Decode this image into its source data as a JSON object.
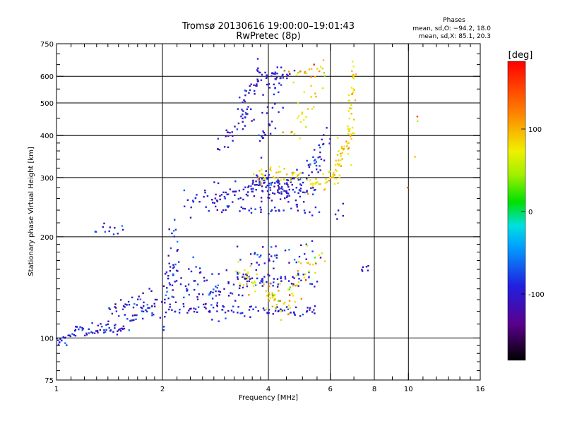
{
  "chart_data": {
    "type": "scatter",
    "title": "Tromsø 20130616 19:00:00–19:01:43",
    "subtitle": "RwPretec (8p)",
    "xlabel": "Frequency [MHz]",
    "ylabel": "Stationary phase Virtual Height [km]",
    "x_scale": "log",
    "y_scale": "log",
    "xlim": [
      1,
      16
    ],
    "ylim": [
      75,
      750
    ],
    "x_ticks": [
      1,
      2,
      4,
      6,
      8,
      10,
      16
    ],
    "x_tick_labels": [
      "1",
      "2",
      "4",
      "6",
      "8",
      "10",
      "16"
    ],
    "y_ticks": [
      75,
      100,
      200,
      300,
      400,
      500,
      600,
      750
    ],
    "y_tick_labels": [
      "75",
      "100",
      "200",
      "300",
      "400",
      "500",
      "600",
      "750"
    ],
    "x_minor_ticks": [
      1.1,
      1.2,
      1.3,
      1.4,
      1.5,
      1.6,
      1.7,
      1.8,
      1.9,
      2.2,
      2.4,
      2.6,
      2.8,
      3,
      3.2,
      3.4,
      3.6,
      3.8,
      4.5,
      5,
      5.5,
      7,
      9,
      11,
      12,
      13,
      14,
      15
    ],
    "y_minor_ticks": [
      80,
      85,
      90,
      95,
      110,
      120,
      130,
      140,
      150,
      160,
      170,
      180,
      190,
      220,
      240,
      260,
      280,
      320,
      340,
      360,
      380,
      450,
      550,
      650,
      700
    ],
    "grid_x": [
      2,
      4,
      6,
      8,
      10
    ],
    "grid_y": [
      100,
      200,
      300,
      400,
      500,
      600
    ],
    "grid": true,
    "legend": {
      "title": "Phases",
      "lines": [
        "mean, sd,O: −94.2, 18.0",
        "mean, sd,X: 85.1, 20.3"
      ],
      "placement": "top-right"
    },
    "colorbar": {
      "label": "[deg]",
      "range": [
        -180,
        180
      ],
      "ticks": [
        100,
        0,
        -100
      ],
      "tick_labels": [
        "100",
        "0",
        "-100"
      ],
      "colormap": "rainbow"
    },
    "series": [
      {
        "name": "O",
        "color_mean_deg": -94.2,
        "color_sd_deg": 18.0,
        "traces": [
          {
            "x0": 1.0,
            "x1": 1.12,
            "y0": 97,
            "y1": 102,
            "n": 20,
            "jx": 0.01,
            "jy": 0.02,
            "p": -95,
            "ps": 15
          },
          {
            "x0": 1.12,
            "x1": 1.55,
            "y0": 106,
            "y1": 106,
            "n": 45,
            "jx": 0.005,
            "jy": 0.02,
            "p": -95,
            "ps": 15
          },
          {
            "x0": 1.4,
            "x1": 1.9,
            "y0": 118,
            "y1": 128,
            "n": 40,
            "jx": 0.01,
            "jy": 0.05,
            "p": -95,
            "ps": 20
          },
          {
            "x0": 1.55,
            "x1": 2.0,
            "y0": 108,
            "y1": 130,
            "n": 25,
            "jx": 0.01,
            "jy": 0.03,
            "p": -95,
            "ps": 20
          },
          {
            "x0": 1.3,
            "x1": 1.55,
            "y0": 207,
            "y1": 210,
            "n": 12,
            "jx": 0.01,
            "jy": 0.02,
            "p": -90,
            "ps": 20
          },
          {
            "x0": 2.0,
            "x1": 2.2,
            "y0": 120,
            "y1": 195,
            "n": 40,
            "jx": 0.02,
            "jy": 0.1,
            "p": -95,
            "ps": 20
          },
          {
            "x0": 2.1,
            "x1": 3.0,
            "y0": 150,
            "y1": 130,
            "n": 60,
            "jx": 0.03,
            "jy": 0.08,
            "p": -95,
            "ps": 20
          },
          {
            "x0": 2.1,
            "x1": 5.6,
            "y0": 122,
            "y1": 120,
            "n": 80,
            "jx": 0.02,
            "jy": 0.02,
            "p": -95,
            "ps": 15
          },
          {
            "x0": 2.8,
            "x1": 4.2,
            "y0": 130,
            "y1": 170,
            "n": 40,
            "jx": 0.03,
            "jy": 0.06,
            "p": -90,
            "ps": 25
          },
          {
            "x0": 3.2,
            "x1": 5.5,
            "y0": 148,
            "y1": 148,
            "n": 50,
            "jx": 0.02,
            "jy": 0.03,
            "p": -95,
            "ps": 15
          },
          {
            "x0": 3.4,
            "x1": 5.6,
            "y0": 175,
            "y1": 175,
            "n": 30,
            "jx": 0.03,
            "jy": 0.04,
            "p": -90,
            "ps": 25
          },
          {
            "x0": 2.3,
            "x1": 3.0,
            "y0": 250,
            "y1": 270,
            "n": 25,
            "jx": 0.02,
            "jy": 0.06,
            "p": -95,
            "ps": 15
          },
          {
            "x0": 2.8,
            "x1": 4.0,
            "y0": 250,
            "y1": 298,
            "n": 50,
            "jx": 0.02,
            "jy": 0.03,
            "p": -100,
            "ps": 15
          },
          {
            "x0": 3.7,
            "x1": 5.0,
            "y0": 298,
            "y1": 262,
            "n": 45,
            "jx": 0.02,
            "jy": 0.03,
            "p": -100,
            "ps": 15
          },
          {
            "x0": 3.9,
            "x1": 5.7,
            "y0": 262,
            "y1": 330,
            "n": 45,
            "jx": 0.02,
            "jy": 0.03,
            "p": -100,
            "ps": 15
          },
          {
            "x0": 3.5,
            "x1": 5.5,
            "y0": 280,
            "y1": 272,
            "n": 35,
            "jx": 0.02,
            "jy": 0.03,
            "p": -95,
            "ps": 15
          },
          {
            "x0": 5.3,
            "x1": 5.9,
            "y0": 330,
            "y1": 395,
            "n": 20,
            "jx": 0.01,
            "jy": 0.04,
            "p": -90,
            "ps": 20
          },
          {
            "x0": 3.0,
            "x1": 5.6,
            "y0": 240,
            "y1": 240,
            "n": 35,
            "jx": 0.03,
            "jy": 0.02,
            "p": -95,
            "ps": 15
          },
          {
            "x0": 2.9,
            "x1": 3.6,
            "y0": 370,
            "y1": 470,
            "n": 30,
            "jx": 0.02,
            "jy": 0.04,
            "p": -100,
            "ps": 15
          },
          {
            "x0": 3.3,
            "x1": 3.9,
            "y0": 470,
            "y1": 630,
            "n": 35,
            "jx": 0.02,
            "jy": 0.04,
            "p": -100,
            "ps": 15
          },
          {
            "x0": 3.9,
            "x1": 4.6,
            "y0": 600,
            "y1": 600,
            "n": 30,
            "jx": 0.02,
            "jy": 0.03,
            "p": -100,
            "ps": 15
          },
          {
            "x0": 3.8,
            "x1": 4.3,
            "y0": 380,
            "y1": 560,
            "n": 30,
            "jx": 0.03,
            "jy": 0.08,
            "p": -100,
            "ps": 15
          },
          {
            "x0": 6.2,
            "x1": 6.5,
            "y0": 230,
            "y1": 250,
            "n": 5,
            "jx": 0.02,
            "jy": 0.03,
            "p": -95,
            "ps": 15
          },
          {
            "x0": 7.4,
            "x1": 7.6,
            "y0": 160,
            "y1": 164,
            "n": 6,
            "jx": 0.01,
            "jy": 0.02,
            "p": -100,
            "ps": 15
          }
        ]
      },
      {
        "name": "X",
        "color_mean_deg": 85.1,
        "color_sd_deg": 20.3,
        "traces": [
          {
            "x0": 3.3,
            "x1": 4.6,
            "y0": 160,
            "y1": 120,
            "n": 50,
            "jx": 0.03,
            "jy": 0.04,
            "p": 85,
            "ps": 20
          },
          {
            "x0": 4.2,
            "x1": 5.6,
            "y0": 125,
            "y1": 175,
            "n": 40,
            "jx": 0.04,
            "jy": 0.06,
            "p": 75,
            "ps": 35
          },
          {
            "x0": 3.7,
            "x1": 5.0,
            "y0": 300,
            "y1": 310,
            "n": 40,
            "jx": 0.02,
            "jy": 0.03,
            "p": 85,
            "ps": 15
          },
          {
            "x0": 5.2,
            "x1": 6.2,
            "y0": 280,
            "y1": 300,
            "n": 25,
            "jx": 0.02,
            "jy": 0.03,
            "p": 80,
            "ps": 20
          },
          {
            "x0": 6.1,
            "x1": 6.9,
            "y0": 300,
            "y1": 400,
            "n": 45,
            "jx": 0.02,
            "jy": 0.04,
            "p": 85,
            "ps": 15
          },
          {
            "x0": 6.8,
            "x1": 7.0,
            "y0": 400,
            "y1": 640,
            "n": 35,
            "jx": 0.01,
            "jy": 0.03,
            "p": 80,
            "ps": 15
          },
          {
            "x0": 4.6,
            "x1": 5.8,
            "y0": 600,
            "y1": 640,
            "n": 20,
            "jx": 0.02,
            "jy": 0.02,
            "p": 95,
            "ps": 25
          },
          {
            "x0": 4.6,
            "x1": 5.6,
            "y0": 400,
            "y1": 560,
            "n": 25,
            "jx": 0.03,
            "jy": 0.06,
            "p": 80,
            "ps": 20
          },
          {
            "x0": 10.0,
            "x1": 11.0,
            "y0": 300,
            "y1": 460,
            "n": 4,
            "jx": 0.02,
            "jy": 0.05,
            "p": 110,
            "ps": 30
          }
        ]
      }
    ]
  }
}
